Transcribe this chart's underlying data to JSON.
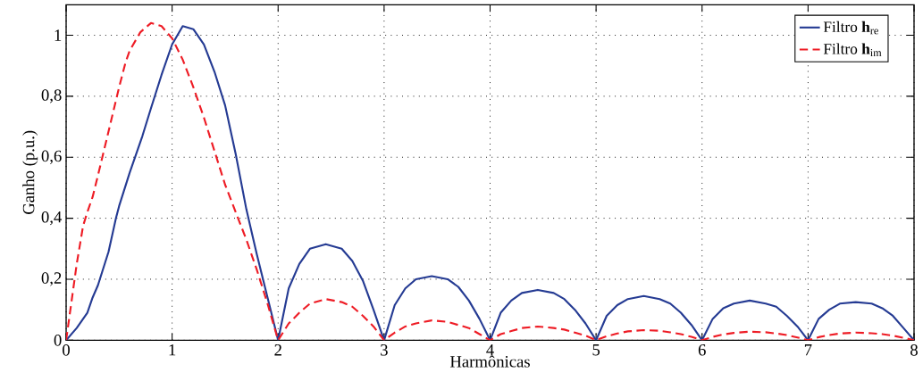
{
  "chart_data": {
    "type": "line",
    "xlabel": "Harmônicas",
    "ylabel": "Ganho (p.u.)",
    "xlim": [
      0,
      8
    ],
    "ylim": [
      0,
      1.1
    ],
    "xticks": [
      0,
      1,
      2,
      3,
      4,
      5,
      6,
      7,
      8
    ],
    "yticks": [
      0,
      {
        "value": 0.2,
        "label": "0,2"
      },
      {
        "value": 0.4,
        "label": "0,4"
      },
      {
        "value": 0.6,
        "label": "0,6"
      },
      {
        "value": 0.8,
        "label": "0,8"
      },
      1
    ],
    "grid": true,
    "legend": "top right",
    "marker": "none",
    "series": [
      {
        "name": "Filtro **h**$_{re}$",
        "color": "#253b93",
        "line_style": "solid",
        "x": [
          0,
          0.1,
          0.2,
          0.25,
          0.3,
          0.4,
          0.47,
          0.5,
          0.6,
          0.72,
          0.8,
          0.9,
          1.0,
          1.1,
          1.2,
          1.3,
          1.4,
          1.5,
          1.6,
          1.7,
          1.8,
          1.9,
          2,
          2.1,
          2.2,
          2.3,
          2.45,
          2.6,
          2.7,
          2.8,
          2.9,
          3,
          3.1,
          3.2,
          3.3,
          3.45,
          3.6,
          3.7,
          3.8,
          3.9,
          4,
          4.1,
          4.2,
          4.3,
          4.45,
          4.6,
          4.7,
          4.8,
          4.9,
          5,
          5.1,
          5.2,
          5.3,
          5.45,
          5.6,
          5.7,
          5.8,
          5.9,
          6,
          6.1,
          6.2,
          6.3,
          6.45,
          6.6,
          6.7,
          6.8,
          6.9,
          7,
          7.1,
          7.2,
          7.3,
          7.45,
          7.6,
          7.7,
          7.8,
          7.9,
          8
        ],
        "values": [
          0,
          0.04,
          0.09,
          0.14,
          0.18,
          0.29,
          0.4,
          0.44,
          0.55,
          0.67,
          0.76,
          0.87,
          0.97,
          1.03,
          1.02,
          0.97,
          0.88,
          0.77,
          0.61,
          0.43,
          0.28,
          0.14,
          0,
          0.17,
          0.25,
          0.3,
          0.315,
          0.3,
          0.26,
          0.195,
          0.1,
          0,
          0.115,
          0.17,
          0.2,
          0.21,
          0.2,
          0.175,
          0.13,
          0.07,
          0,
          0.09,
          0.13,
          0.155,
          0.165,
          0.155,
          0.135,
          0.1,
          0.055,
          0,
          0.08,
          0.115,
          0.135,
          0.145,
          0.135,
          0.12,
          0.09,
          0.05,
          0,
          0.07,
          0.105,
          0.12,
          0.13,
          0.12,
          0.11,
          0.08,
          0.045,
          0,
          0.07,
          0.1,
          0.12,
          0.125,
          0.12,
          0.105,
          0.08,
          0.04,
          0
        ]
      },
      {
        "name": "Filtro **h**$_{im}$",
        "color": "#ee1c25",
        "line_style": "dashed",
        "x": [
          0,
          0.1,
          0.16,
          0.2,
          0.25,
          0.3,
          0.39,
          0.5,
          0.56,
          0.6,
          0.7,
          0.8,
          0.9,
          1.0,
          1.1,
          1.2,
          1.3,
          1.4,
          1.5,
          1.6,
          1.7,
          1.8,
          1.9,
          2,
          2.1,
          2.2,
          2.3,
          2.45,
          2.6,
          2.7,
          2.8,
          2.9,
          3,
          3.1,
          3.2,
          3.3,
          3.45,
          3.6,
          3.7,
          3.8,
          3.9,
          4,
          4.1,
          4.2,
          4.3,
          4.45,
          4.6,
          4.7,
          4.8,
          4.9,
          5,
          5.1,
          5.2,
          5.3,
          5.45,
          5.6,
          5.7,
          5.8,
          5.9,
          6,
          6.1,
          6.2,
          6.3,
          6.45,
          6.6,
          6.7,
          6.8,
          6.9,
          7,
          7.1,
          7.2,
          7.3,
          7.45,
          7.6,
          7.7,
          7.8,
          7.9,
          8
        ],
        "values": [
          0,
          0.25,
          0.375,
          0.42,
          0.47,
          0.54,
          0.67,
          0.83,
          0.91,
          0.95,
          1.01,
          1.04,
          1.03,
          0.99,
          0.92,
          0.83,
          0.73,
          0.62,
          0.51,
          0.42,
          0.33,
          0.23,
          0.12,
          0,
          0.055,
          0.09,
          0.12,
          0.135,
          0.125,
          0.11,
          0.08,
          0.045,
          0,
          0.025,
          0.045,
          0.055,
          0.065,
          0.06,
          0.05,
          0.04,
          0.02,
          0,
          0.02,
          0.03,
          0.04,
          0.045,
          0.04,
          0.035,
          0.025,
          0.015,
          0,
          0.013,
          0.022,
          0.029,
          0.033,
          0.031,
          0.026,
          0.02,
          0.011,
          0,
          0.011,
          0.019,
          0.024,
          0.028,
          0.026,
          0.022,
          0.017,
          0.009,
          0,
          0.01,
          0.017,
          0.022,
          0.025,
          0.023,
          0.02,
          0.015,
          0.008,
          0
        ]
      }
    ]
  }
}
